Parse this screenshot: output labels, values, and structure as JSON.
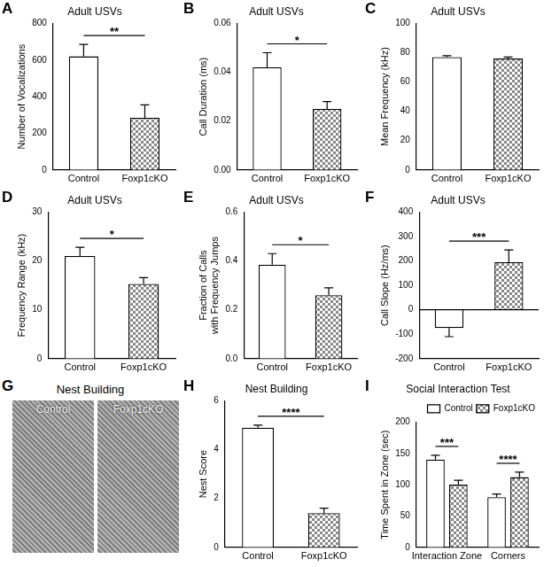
{
  "chart_data": [
    {
      "panel": "A",
      "type": "bar",
      "title": "Adult USVs",
      "y_label": "Number of Vocalizations",
      "categories": [
        "Control",
        "Foxp1cKO"
      ],
      "values": [
        620,
        285
      ],
      "errors": [
        65,
        70
      ],
      "colors": [
        "#ffffff",
        "#888888"
      ],
      "ylim": [
        0,
        800
      ],
      "yticks": [
        0,
        200,
        400,
        600,
        800
      ],
      "significance": "**",
      "grid": false
    },
    {
      "panel": "B",
      "type": "bar",
      "title": "Adult USVs",
      "y_label": "Call Duration (ms)",
      "categories": [
        "Control",
        "Foxp1cKO"
      ],
      "values": [
        0.042,
        0.025
      ],
      "errors": [
        0.006,
        0.003
      ],
      "colors": [
        "#ffffff",
        "#888888"
      ],
      "ylim": [
        0,
        0.06
      ],
      "yticks": [
        {
          "value": 0,
          "label": "0.00"
        },
        {
          "value": 0.02,
          "label": "0.02"
        },
        {
          "value": 0.04,
          "label": "0.04"
        },
        {
          "value": 0.06,
          "label": "0.06"
        }
      ],
      "significance": "*",
      "grid": false
    },
    {
      "panel": "C",
      "type": "bar",
      "title": "Adult USVs",
      "y_label": "Mean Frequency (kHz)",
      "categories": [
        "Control",
        "Foxp1cKO"
      ],
      "values": [
        77,
        76
      ],
      "errors": [
        1,
        1
      ],
      "colors": [
        "#ffffff",
        "#888888"
      ],
      "ylim": [
        0,
        100
      ],
      "yticks": [
        0,
        20,
        40,
        60,
        80,
        100
      ],
      "grid": false
    },
    {
      "panel": "D",
      "type": "bar",
      "title": "Adult USVs",
      "y_label": "Frequency Range (kHz)",
      "categories": [
        "Control",
        "Foxp1cKO"
      ],
      "values": [
        21,
        15.3
      ],
      "errors": [
        1.8,
        1.3
      ],
      "colors": [
        "#ffffff",
        "#888888"
      ],
      "ylim": [
        0,
        30
      ],
      "yticks": [
        0,
        10,
        20,
        30
      ],
      "significance": "*",
      "grid": false
    },
    {
      "panel": "E",
      "type": "bar",
      "title": "Adult USVs",
      "y_label": "Fraction of Calls with Frequency Jumps",
      "categories": [
        "Control",
        "Foxp1cKO"
      ],
      "values": [
        0.385,
        0.26
      ],
      "errors": [
        0.045,
        0.03
      ],
      "colors": [
        "#ffffff",
        "#888888"
      ],
      "ylim": [
        0,
        0.6
      ],
      "yticks": [
        {
          "value": 0,
          "label": "0.0"
        },
        {
          "value": 0.2,
          "label": "0.2"
        },
        {
          "value": 0.4,
          "label": "0.4"
        },
        {
          "value": 0.6,
          "label": "0.6"
        }
      ],
      "significance": "*",
      "grid": false
    },
    {
      "panel": "F",
      "type": "bar",
      "title": "Adult USVs",
      "y_label": "Call Slope (Hz/ms)",
      "categories": [
        "Control",
        "Foxp1cKO"
      ],
      "values": [
        -75,
        195
      ],
      "errors": [
        35,
        50
      ],
      "colors": [
        "#ffffff",
        "#888888"
      ],
      "ylim": [
        -200,
        400
      ],
      "yticks": [
        -200,
        -100,
        0,
        100,
        200,
        300,
        400
      ],
      "significance": "***",
      "grid": false
    },
    {
      "panel": "G",
      "type": "photo",
      "title": "Nest Building",
      "categories": [
        "Control",
        "Foxp1cKO"
      ]
    },
    {
      "panel": "H",
      "type": "bar",
      "title": "Nest Building",
      "y_label": "Nest Score",
      "categories": [
        "Control",
        "Foxp1cKO"
      ],
      "values": [
        4.9,
        1.4
      ],
      "errors": [
        0.1,
        0.2
      ],
      "colors": [
        "#ffffff",
        "#888888"
      ],
      "ylim": [
        0,
        6
      ],
      "yticks": [
        0,
        2,
        4,
        6
      ],
      "significance": "****",
      "grid": false
    },
    {
      "panel": "I",
      "type": "bar",
      "title": "Social Interaction Test",
      "y_label": "Time Spent in Zone (sec)",
      "categories": [
        "Interaction Zone",
        "Corners"
      ],
      "series": [
        {
          "name": "Control",
          "color": "#ffffff",
          "values": [
            140,
            80
          ],
          "errors": [
            7,
            5
          ]
        },
        {
          "name": "Foxp1cKO",
          "color": "#888888",
          "values": [
            100,
            112
          ],
          "errors": [
            7,
            8
          ]
        }
      ],
      "ylim": [
        0,
        200
      ],
      "yticks": [
        0,
        50,
        100,
        150,
        200
      ],
      "significance": [
        "***",
        "****"
      ],
      "legend": "upper right",
      "grid": false
    }
  ]
}
